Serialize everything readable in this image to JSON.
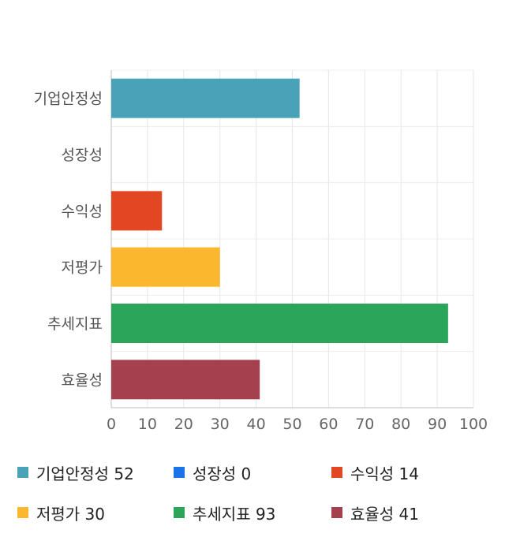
{
  "chart_data": {
    "type": "bar",
    "orientation": "horizontal",
    "categories": [
      "기업안정성",
      "성장성",
      "수익성",
      "저평가",
      "추세지표",
      "효율성"
    ],
    "values": [
      52,
      0,
      14,
      30,
      93,
      41
    ],
    "colors": [
      "#4aa2b9",
      "#1a73e8",
      "#e34623",
      "#fbb82f",
      "#2aa55a",
      "#a5404f"
    ],
    "xlim": [
      0,
      100
    ],
    "xticks": [
      0,
      10,
      20,
      30,
      40,
      50,
      60,
      70,
      80,
      90,
      100
    ],
    "grid": true,
    "title": "",
    "xlabel": "",
    "ylabel": ""
  },
  "legend": {
    "placement": "bottom",
    "items": [
      {
        "label": "기업안정성 52",
        "color": "#4aa2b9"
      },
      {
        "label": "성장성 0",
        "color": "#1a73e8"
      },
      {
        "label": "수익성 14",
        "color": "#e34623"
      },
      {
        "label": "저평가 30",
        "color": "#fbb82f"
      },
      {
        "label": "추세지표 93",
        "color": "#2aa55a"
      },
      {
        "label": "효율성 41",
        "color": "#a5404f"
      }
    ]
  }
}
